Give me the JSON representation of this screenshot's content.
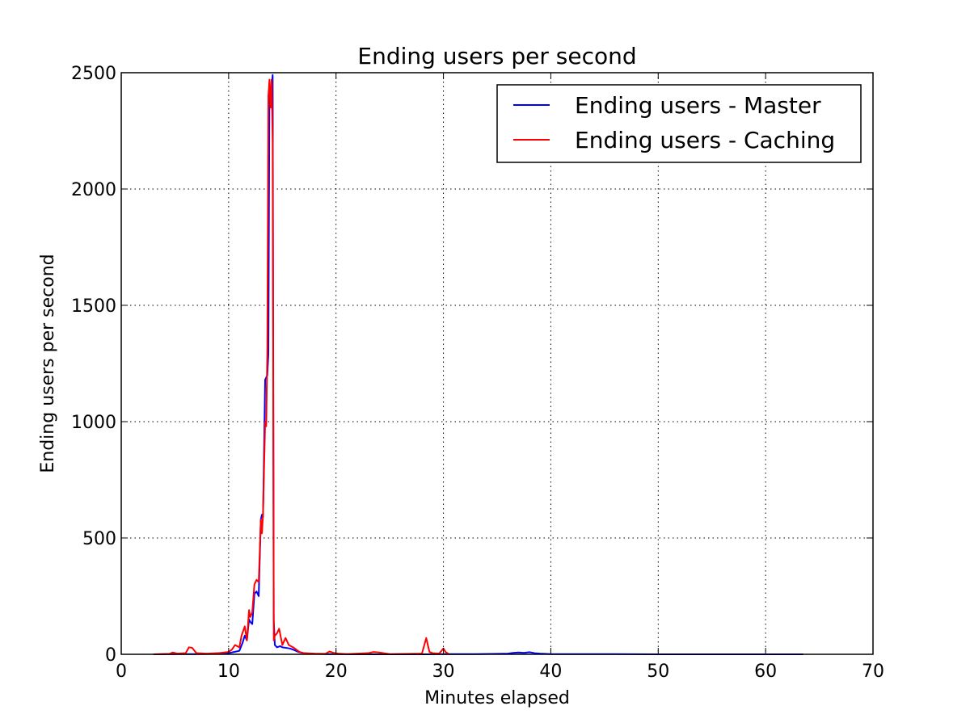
{
  "chart_data": {
    "type": "line",
    "title": "Ending users per second",
    "xlabel": "Minutes elapsed",
    "ylabel": "Ending users per second",
    "xlim": [
      0,
      70
    ],
    "ylim": [
      0,
      2500
    ],
    "xticks": [
      0,
      10,
      20,
      30,
      40,
      50,
      60,
      70
    ],
    "yticks": [
      0,
      500,
      1000,
      1500,
      2000,
      2500
    ],
    "xtick_labels": [
      "0",
      "10",
      "20",
      "30",
      "40",
      "50",
      "60",
      "70"
    ],
    "ytick_labels": [
      "0",
      "500",
      "1000",
      "1500",
      "2000",
      "2500"
    ],
    "grid": true,
    "legend_position": "top-right",
    "series": [
      {
        "name": "Ending users - Master",
        "color": "#0000ff",
        "x": [
          3.0,
          5.0,
          7.0,
          9.0,
          10.0,
          10.5,
          11.0,
          11.3,
          11.5,
          11.7,
          11.9,
          12.0,
          12.2,
          12.4,
          12.6,
          12.8,
          13.0,
          13.1,
          13.2,
          13.4,
          13.6,
          13.7,
          13.8,
          13.9,
          14.0,
          14.1,
          14.2,
          14.3,
          14.5,
          14.8,
          15.0,
          15.3,
          15.7,
          16.0,
          16.5,
          17.0,
          18.0,
          19.0,
          20.0,
          22.0,
          25.0,
          28.0,
          30.0,
          33.0,
          35.0,
          36.0,
          36.5,
          37.0,
          37.5,
          38.0,
          38.5,
          39.0,
          40.0,
          45.0,
          50.0,
          55.0,
          60.0,
          63.5
        ],
        "y": [
          0,
          1,
          1,
          2,
          5,
          10,
          15,
          50,
          80,
          60,
          150,
          140,
          130,
          260,
          270,
          250,
          580,
          600,
          590,
          1180,
          1200,
          1290,
          2430,
          2430,
          2440,
          2490,
          150,
          40,
          30,
          35,
          30,
          28,
          25,
          20,
          10,
          5,
          2,
          1,
          1,
          0,
          0,
          0,
          1,
          1,
          2,
          3,
          6,
          8,
          6,
          9,
          5,
          3,
          1,
          1,
          0,
          0,
          0,
          0
        ]
      },
      {
        "name": "Ending users - Caching",
        "color": "#ff0000",
        "x": [
          3.0,
          4.5,
          4.8,
          5.2,
          6.0,
          6.3,
          6.6,
          7.0,
          8.0,
          9.0,
          10.0,
          10.3,
          10.6,
          11.0,
          11.2,
          11.5,
          11.7,
          11.9,
          12.0,
          12.2,
          12.4,
          12.6,
          12.8,
          13.0,
          13.1,
          13.2,
          13.4,
          13.5,
          13.6,
          13.7,
          13.8,
          13.9,
          14.0,
          14.1,
          14.2,
          14.3,
          14.5,
          14.7,
          15.0,
          15.3,
          15.6,
          16.0,
          16.3,
          16.6,
          17.0,
          18.0,
          19.0,
          19.4,
          19.8,
          20.2,
          21.0,
          23.0,
          23.5,
          24.0,
          25.0,
          28.0,
          28.4,
          28.7,
          29.0,
          29.6,
          30.0,
          30.2,
          30.5
        ],
        "y": [
          0,
          2,
          8,
          3,
          5,
          30,
          28,
          5,
          3,
          5,
          10,
          20,
          40,
          30,
          80,
          120,
          60,
          190,
          160,
          180,
          300,
          320,
          310,
          580,
          520,
          600,
          1000,
          980,
          1300,
          2400,
          2470,
          2350,
          2470,
          2200,
          60,
          80,
          90,
          110,
          40,
          70,
          40,
          30,
          20,
          10,
          5,
          3,
          2,
          12,
          6,
          3,
          1,
          5,
          10,
          8,
          1,
          3,
          70,
          10,
          5,
          3,
          25,
          10,
          1
        ]
      }
    ]
  }
}
